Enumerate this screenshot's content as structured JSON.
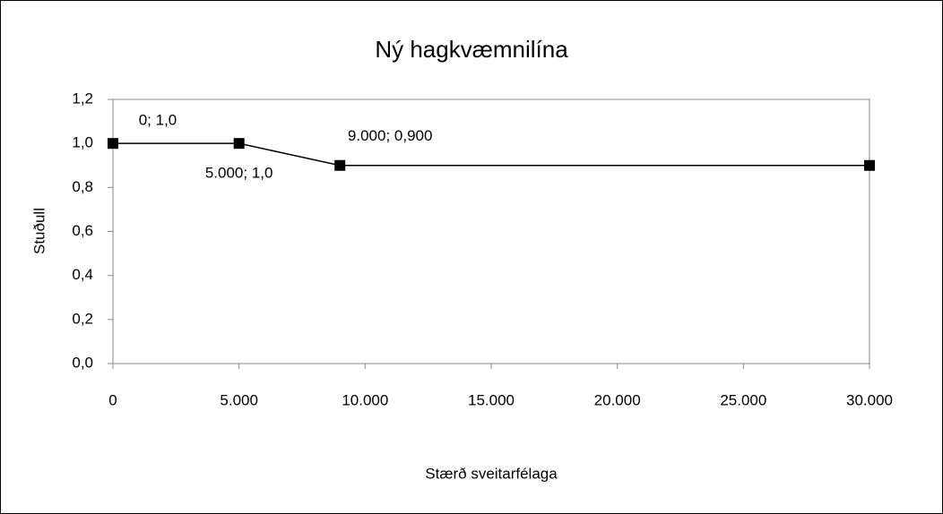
{
  "chart_data": {
    "type": "line",
    "title": "Ný hagkvæmnilína",
    "x_label": "Stærð sveitarfélaga",
    "y_label": "Stuðull",
    "x": [
      0,
      5000,
      9000,
      30000
    ],
    "series": [
      {
        "name": null,
        "color": "#000000",
        "values": [
          1.0,
          1.0,
          0.9,
          0.9
        ],
        "value_labels": [
          "0; 1,0",
          "5.000; 1,0",
          "9.000; 0,900",
          null
        ]
      }
    ],
    "xlim": [
      0,
      30000
    ],
    "xticks": [
      0,
      {
        "value": 5000,
        "label": "5.000"
      },
      {
        "value": 10000,
        "label": "10.000"
      },
      {
        "value": 15000,
        "label": "15.000"
      },
      {
        "value": 20000,
        "label": "20.000"
      },
      {
        "value": 25000,
        "label": "25.000"
      },
      {
        "value": 30000,
        "label": "30.000"
      }
    ],
    "ylim": [
      0,
      1.2
    ],
    "yticks": [
      {
        "value": 0,
        "label": "0,0"
      },
      {
        "value": 0.2,
        "label": "0,2"
      },
      {
        "value": 0.4,
        "label": "0,4"
      },
      {
        "value": 0.6,
        "label": "0,6"
      },
      {
        "value": 0.8,
        "label": "0,8"
      },
      {
        "value": 1.0,
        "label": "1,0"
      },
      {
        "value": 1.2,
        "label": "1,2"
      }
    ],
    "grid": false,
    "legend": false
  }
}
